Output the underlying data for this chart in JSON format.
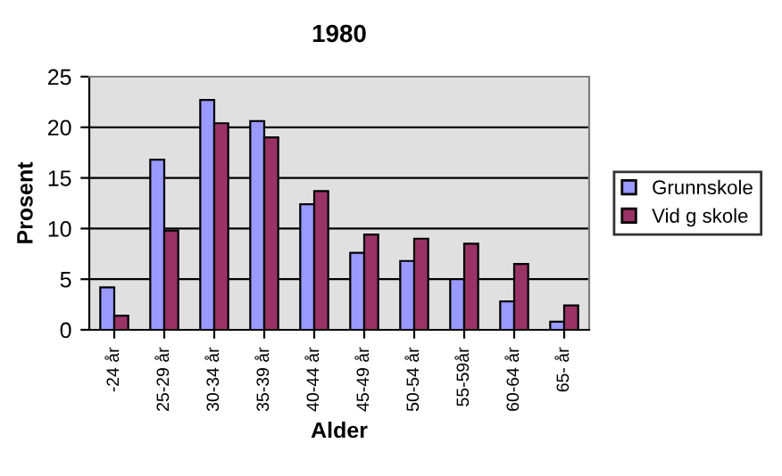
{
  "chart_data": {
    "type": "bar",
    "title": "1980",
    "xlabel": "Alder",
    "ylabel": "Prosent",
    "categories": [
      "-24 år",
      "25-29 år",
      "30-34 år",
      "35-39 år",
      "40-44 år",
      "45-49 år",
      "50-54 år",
      "55-59år",
      "60-64 år",
      "65- år"
    ],
    "series": [
      {
        "name": "Grunnskole",
        "color": "#9999ff",
        "values": [
          4.2,
          16.8,
          22.7,
          20.6,
          12.4,
          7.6,
          6.8,
          5.0,
          2.8,
          0.8
        ]
      },
      {
        "name": "Vid g skole",
        "color": "#993366",
        "values": [
          1.4,
          9.8,
          20.4,
          19.0,
          13.7,
          9.4,
          9.0,
          8.5,
          6.5,
          2.4
        ]
      }
    ],
    "ylim": [
      0,
      25
    ],
    "yticks": [
      0,
      5,
      10,
      15,
      20,
      25
    ],
    "grid": "y",
    "legend": "right"
  }
}
